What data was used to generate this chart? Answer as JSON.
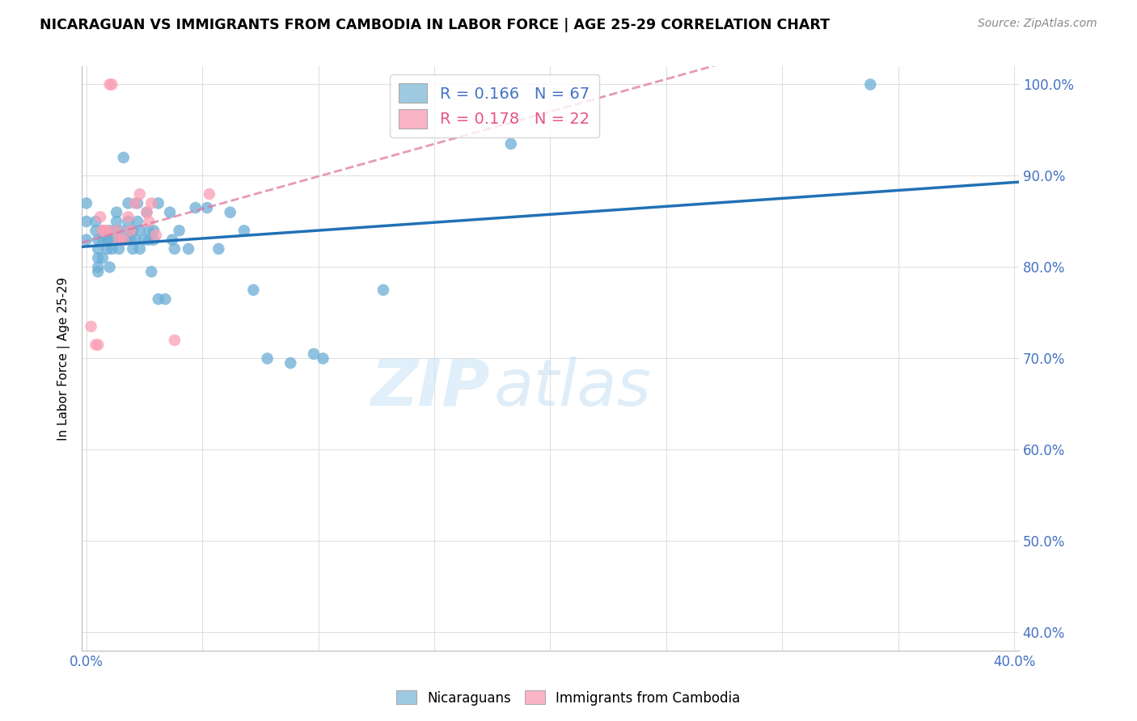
{
  "title": "NICARAGUAN VS IMMIGRANTS FROM CAMBODIA IN LABOR FORCE | AGE 25-29 CORRELATION CHART",
  "source": "Source: ZipAtlas.com",
  "ylabel_label": "In Labor Force | Age 25-29",
  "x_min": -0.002,
  "x_max": 0.402,
  "y_min": 0.38,
  "y_max": 1.02,
  "blue_color": "#6baed6",
  "pink_color": "#fa9fb5",
  "blue_line_color": "#2171b5",
  "pink_line_color": "#de77a0",
  "legend_blue_fill": "#9ecae1",
  "legend_pink_fill": "#fbb4c6",
  "R_blue": 0.166,
  "N_blue": 67,
  "R_pink": 0.178,
  "N_pink": 22,
  "watermark_zip": "ZIP",
  "watermark_atlas": "atlas",
  "blue_scatter_x": [
    0.0,
    0.0,
    0.0,
    0.004,
    0.004,
    0.005,
    0.005,
    0.005,
    0.005,
    0.005,
    0.007,
    0.007,
    0.007,
    0.009,
    0.009,
    0.009,
    0.01,
    0.01,
    0.011,
    0.011,
    0.013,
    0.013,
    0.013,
    0.014,
    0.014,
    0.016,
    0.016,
    0.017,
    0.018,
    0.018,
    0.019,
    0.019,
    0.02,
    0.02,
    0.021,
    0.022,
    0.022,
    0.023,
    0.023,
    0.025,
    0.026,
    0.027,
    0.027,
    0.028,
    0.029,
    0.029,
    0.031,
    0.031,
    0.034,
    0.036,
    0.037,
    0.038,
    0.04,
    0.044,
    0.047,
    0.052,
    0.057,
    0.062,
    0.068,
    0.072,
    0.078,
    0.088,
    0.098,
    0.102,
    0.128,
    0.183,
    0.338
  ],
  "blue_scatter_y": [
    0.87,
    0.85,
    0.83,
    0.85,
    0.84,
    0.83,
    0.82,
    0.81,
    0.8,
    0.795,
    0.84,
    0.83,
    0.81,
    0.83,
    0.83,
    0.82,
    0.8,
    0.84,
    0.83,
    0.82,
    0.86,
    0.85,
    0.84,
    0.83,
    0.82,
    0.92,
    0.84,
    0.83,
    0.87,
    0.85,
    0.84,
    0.83,
    0.82,
    0.84,
    0.83,
    0.87,
    0.85,
    0.84,
    0.82,
    0.83,
    0.86,
    0.84,
    0.83,
    0.795,
    0.84,
    0.83,
    0.87,
    0.765,
    0.765,
    0.86,
    0.83,
    0.82,
    0.84,
    0.82,
    0.865,
    0.865,
    0.82,
    0.86,
    0.84,
    0.775,
    0.7,
    0.695,
    0.705,
    0.7,
    0.775,
    0.935,
    1.0
  ],
  "pink_scatter_x": [
    0.002,
    0.004,
    0.005,
    0.006,
    0.007,
    0.008,
    0.009,
    0.01,
    0.011,
    0.013,
    0.014,
    0.016,
    0.018,
    0.019,
    0.021,
    0.023,
    0.026,
    0.027,
    0.028,
    0.03,
    0.038,
    0.053
  ],
  "pink_scatter_y": [
    0.735,
    0.715,
    0.715,
    0.855,
    0.84,
    0.84,
    0.84,
    1.0,
    1.0,
    0.84,
    0.83,
    0.83,
    0.855,
    0.84,
    0.87,
    0.88,
    0.86,
    0.85,
    0.87,
    0.835,
    0.72,
    0.88
  ],
  "blue_trendline_x": [
    -0.002,
    0.402
  ],
  "blue_trendline_y": [
    0.82,
    0.94
  ],
  "pink_trendline_x": [
    -0.002,
    0.402
  ],
  "pink_trendline_y": [
    0.8,
    1.01
  ]
}
